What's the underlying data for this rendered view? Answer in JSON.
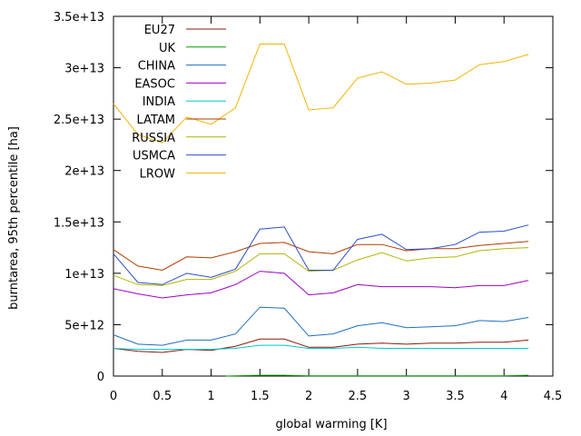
{
  "chart_data": {
    "type": "line",
    "xlabel": "global warming [K]",
    "ylabel": "burntarea, 95th percentile [ha]",
    "xlim": [
      0,
      4.5
    ],
    "ylim": [
      0,
      35000000000000.0
    ],
    "xticks": [
      0,
      0.5,
      1,
      1.5,
      2,
      2.5,
      3,
      3.5,
      4,
      4.5
    ],
    "xtick_labels": [
      "0",
      "0.5",
      "1",
      "1.5",
      "2",
      "2.5",
      "3",
      "3.5",
      "4",
      "4.5"
    ],
    "yticks": [
      0,
      5000000000000.0,
      10000000000000.0,
      15000000000000.0,
      20000000000000.0,
      25000000000000.0,
      30000000000000.0,
      35000000000000.0
    ],
    "ytick_labels": [
      "0",
      "5e+12",
      "1e+13",
      "1.5e+13",
      "2e+13",
      "2.5e+13",
      "3e+13",
      "3.5e+13"
    ],
    "grid": false,
    "legend_position": "top-left",
    "series": [
      {
        "name": "EU27",
        "color": "#8b1a0e",
        "x": [
          0,
          0.25,
          0.5,
          0.75,
          1.0,
          1.25,
          1.5,
          1.75,
          2.0,
          2.25,
          2.5,
          2.75,
          3.0,
          3.25,
          3.5,
          3.75,
          4.0,
          4.25
        ],
        "values": [
          2700000000000.0,
          2400000000000.0,
          2300000000000.0,
          2600000000000.0,
          2500000000000.0,
          2900000000000.0,
          3600000000000.0,
          3600000000000.0,
          2800000000000.0,
          2800000000000.0,
          3100000000000.0,
          3200000000000.0,
          3100000000000.0,
          3200000000000.0,
          3200000000000.0,
          3300000000000.0,
          3300000000000.0,
          3500000000000.0
        ]
      },
      {
        "name": "UK",
        "color": "#00a000",
        "x": [
          1.15,
          1.5,
          1.75,
          2.0,
          2.25,
          2.5,
          2.75,
          3.0,
          3.25,
          3.5,
          3.75,
          4.0,
          4.25
        ],
        "values": [
          0,
          80000000000.0,
          80000000000.0,
          20000000000.0,
          20000000000.0,
          30000000000.0,
          30000000000.0,
          30000000000.0,
          30000000000.0,
          30000000000.0,
          30000000000.0,
          30000000000.0,
          80000000000.0
        ]
      },
      {
        "name": "CHINA",
        "color": "#1f6fbf",
        "x": [
          0,
          0.25,
          0.5,
          0.75,
          1.0,
          1.25,
          1.5,
          1.75,
          2.0,
          2.25,
          2.5,
          2.75,
          3.0,
          3.25,
          3.5,
          3.75,
          4.0,
          4.25
        ],
        "values": [
          4000000000000.0,
          3100000000000.0,
          3000000000000.0,
          3500000000000.0,
          3500000000000.0,
          4100000000000.0,
          6700000000000.0,
          6600000000000.0,
          3900000000000.0,
          4100000000000.0,
          4900000000000.0,
          5200000000000.0,
          4700000000000.0,
          4800000000000.0,
          4900000000000.0,
          5400000000000.0,
          5300000000000.0,
          5700000000000.0
        ]
      },
      {
        "name": "EASOC",
        "color": "#a000c8",
        "x": [
          0,
          0.25,
          0.5,
          0.75,
          1.0,
          1.25,
          1.5,
          1.75,
          2.0,
          2.25,
          2.5,
          2.75,
          3.0,
          3.25,
          3.5,
          3.75,
          4.0,
          4.25
        ],
        "values": [
          8500000000000.0,
          8000000000000.0,
          7600000000000.0,
          7900000000000.0,
          8100000000000.0,
          8900000000000.0,
          10200000000000.0,
          10000000000000.0,
          7900000000000.0,
          8100000000000.0,
          8900000000000.0,
          8700000000000.0,
          8700000000000.0,
          8700000000000.0,
          8600000000000.0,
          8800000000000.0,
          8800000000000.0,
          9300000000000.0
        ]
      },
      {
        "name": "INDIA",
        "color": "#00c8c8",
        "x": [
          0,
          0.25,
          0.5,
          0.75,
          1.0,
          1.25,
          1.5,
          1.75,
          2.0,
          2.25,
          2.5,
          2.75,
          3.0,
          3.25,
          3.5,
          3.75,
          4.0,
          4.25
        ],
        "values": [
          2700000000000.0,
          2600000000000.0,
          2600000000000.0,
          2600000000000.0,
          2600000000000.0,
          2700000000000.0,
          3000000000000.0,
          3000000000000.0,
          2700000000000.0,
          2700000000000.0,
          2800000000000.0,
          2700000000000.0,
          2700000000000.0,
          2700000000000.0,
          2700000000000.0,
          2700000000000.0,
          2700000000000.0,
          2700000000000.0
        ]
      },
      {
        "name": "LATAM",
        "color": "#b03c00",
        "x": [
          0,
          0.25,
          0.5,
          0.75,
          1.0,
          1.25,
          1.5,
          1.75,
          2.0,
          2.25,
          2.5,
          2.75,
          3.0,
          3.25,
          3.5,
          3.75,
          4.0,
          4.25
        ],
        "values": [
          12300000000000.0,
          10700000000000.0,
          10300000000000.0,
          11600000000000.0,
          11500000000000.0,
          12100000000000.0,
          12900000000000.0,
          13000000000000.0,
          12100000000000.0,
          11900000000000.0,
          12800000000000.0,
          12800000000000.0,
          12200000000000.0,
          12400000000000.0,
          12400000000000.0,
          12700000000000.0,
          12900000000000.0,
          13100000000000.0
        ]
      },
      {
        "name": "RUSSIA",
        "color": "#b4b400",
        "x": [
          0,
          0.25,
          0.5,
          0.75,
          1.0,
          1.25,
          1.5,
          1.75,
          2.0,
          2.25,
          2.5,
          2.75,
          3.0,
          3.25,
          3.5,
          3.75,
          4.0,
          4.25
        ],
        "values": [
          9800000000000.0,
          8900000000000.0,
          8800000000000.0,
          9400000000000.0,
          9400000000000.0,
          10200000000000.0,
          11900000000000.0,
          11900000000000.0,
          10200000000000.0,
          10300000000000.0,
          11300000000000.0,
          12000000000000.0,
          11200000000000.0,
          11500000000000.0,
          11600000000000.0,
          12200000000000.0,
          12400000000000.0,
          12500000000000.0
        ]
      },
      {
        "name": "USMCA",
        "color": "#2a4fc8",
        "x": [
          0,
          0.25,
          0.5,
          0.75,
          1.0,
          1.25,
          1.5,
          1.75,
          2.0,
          2.25,
          2.5,
          2.75,
          3.0,
          3.25,
          3.5,
          3.75,
          4.0,
          4.25
        ],
        "values": [
          11900000000000.0,
          9100000000000.0,
          8900000000000.0,
          10000000000000.0,
          9600000000000.0,
          10400000000000.0,
          14300000000000.0,
          14500000000000.0,
          10300000000000.0,
          10300000000000.0,
          13300000000000.0,
          13800000000000.0,
          12300000000000.0,
          12400000000000.0,
          12800000000000.0,
          14000000000000.0,
          14100000000000.0,
          14700000000000.0
        ]
      },
      {
        "name": "LROW",
        "color": "#f0b400",
        "x": [
          0,
          0.25,
          0.5,
          0.75,
          1.0,
          1.25,
          1.5,
          1.75,
          2.0,
          2.25,
          2.5,
          2.75,
          3.0,
          3.25,
          3.5,
          3.75,
          4.0,
          4.25
        ],
        "values": [
          26500000000000.0,
          23500000000000.0,
          22700000000000.0,
          25200000000000.0,
          24500000000000.0,
          26100000000000.0,
          32300000000000.0,
          32300000000000.0,
          25900000000000.0,
          26100000000000.0,
          29000000000000.0,
          29600000000000.0,
          28400000000000.0,
          28500000000000.0,
          28800000000000.0,
          30300000000000.0,
          30600000000000.0,
          31300000000000.0
        ]
      }
    ]
  }
}
